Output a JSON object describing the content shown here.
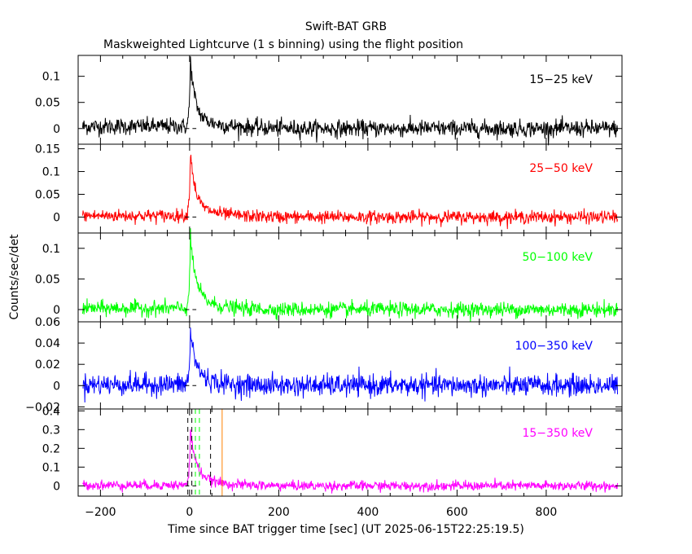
{
  "title": "Swift-BAT GRB",
  "subtitle": "Maskweighted Lightcurve (1 s binning) using the flight position",
  "ylabel": "Counts/sec/det",
  "xlabel": "Time since BAT trigger time [sec] (UT 2025-06-15T22:25:19.5)",
  "colors": {
    "black": "#000000",
    "red": "#ff0000",
    "green": "#00ff00",
    "blue": "#0000ff",
    "magenta": "#ff00ff",
    "orange": "#ff8000"
  },
  "chart_data": {
    "type": "line",
    "x_range": [
      -250,
      970
    ],
    "x_ticks": [
      -200,
      0,
      200,
      400,
      600,
      800
    ],
    "x_tick_labels": [
      "−200",
      "0",
      "200",
      "400",
      "600",
      "800"
    ],
    "panels": [
      {
        "band": "15−25 keV",
        "color": "#000000",
        "ylim": [
          -0.03,
          0.14
        ],
        "y_ticks": [
          0,
          0.05,
          0.1
        ],
        "y_tick_labels": [
          "0",
          "0.05",
          "0.1"
        ],
        "noise_sigma": 0.008,
        "pre_mean": 0.004,
        "peak_time": 2,
        "peak_value": 0.13,
        "rise_time": 8,
        "decay_fast": 10,
        "tail_value": 0.025,
        "decay_slow": 55,
        "vlines": []
      },
      {
        "band": "25−50 keV",
        "color": "#ff0000",
        "ylim": [
          -0.035,
          0.16
        ],
        "y_ticks": [
          0,
          0.05,
          0.1,
          0.15
        ],
        "y_tick_labels": [
          "0",
          "0.05",
          "0.1",
          "0.15"
        ],
        "noise_sigma": 0.007,
        "pre_mean": 0.003,
        "peak_time": 2,
        "peak_value": 0.145,
        "rise_time": 8,
        "decay_fast": 10,
        "tail_value": 0.03,
        "decay_slow": 50,
        "vlines": []
      },
      {
        "band": "50−100 keV",
        "color": "#00ff00",
        "ylim": [
          -0.02,
          0.125
        ],
        "y_ticks": [
          0,
          0.05,
          0.1
        ],
        "y_tick_labels": [
          "0",
          "0.05",
          "0.1"
        ],
        "noise_sigma": 0.006,
        "pre_mean": 0.002,
        "peak_time": 2,
        "peak_value": 0.115,
        "rise_time": 8,
        "decay_fast": 12,
        "tail_value": 0.025,
        "decay_slow": 45,
        "vlines": []
      },
      {
        "band": "100−350 keV",
        "color": "#0000ff",
        "ylim": [
          -0.022,
          0.06
        ],
        "y_ticks": [
          -0.02,
          0,
          0.02,
          0.04,
          0.06
        ],
        "y_tick_labels": [
          "−0.02",
          "0",
          "0.02",
          "0.04",
          "0.06"
        ],
        "noise_sigma": 0.005,
        "pre_mean": 0.001,
        "peak_time": 2,
        "peak_value": 0.05,
        "rise_time": 8,
        "decay_fast": 12,
        "tail_value": 0.012,
        "decay_slow": 40,
        "vlines": []
      },
      {
        "band": "15−350 keV",
        "color": "#ff00ff",
        "ylim": [
          -0.055,
          0.41
        ],
        "y_ticks": [
          0,
          0.1,
          0.2,
          0.3,
          0.4
        ],
        "y_tick_labels": [
          "0",
          "0.1",
          "0.2",
          "0.3",
          "0.4"
        ],
        "noise_sigma": 0.013,
        "pre_mean": 0.004,
        "peak_time": 2,
        "peak_value": 0.29,
        "rise_time": 8,
        "decay_fast": 12,
        "tail_value": 0.07,
        "decay_slow": 45,
        "vlines": [
          {
            "t": -4,
            "color": "#000000",
            "dash": true
          },
          {
            "t": 5,
            "color": "#000000",
            "dash": true
          },
          {
            "t": 13,
            "color": "#00ff00",
            "dash": true
          },
          {
            "t": 22,
            "color": "#00ff00",
            "dash": true
          },
          {
            "t": 47,
            "color": "#000000",
            "dash": true
          },
          {
            "t": 73,
            "color": "#ff8000",
            "dash": false
          }
        ]
      }
    ]
  }
}
